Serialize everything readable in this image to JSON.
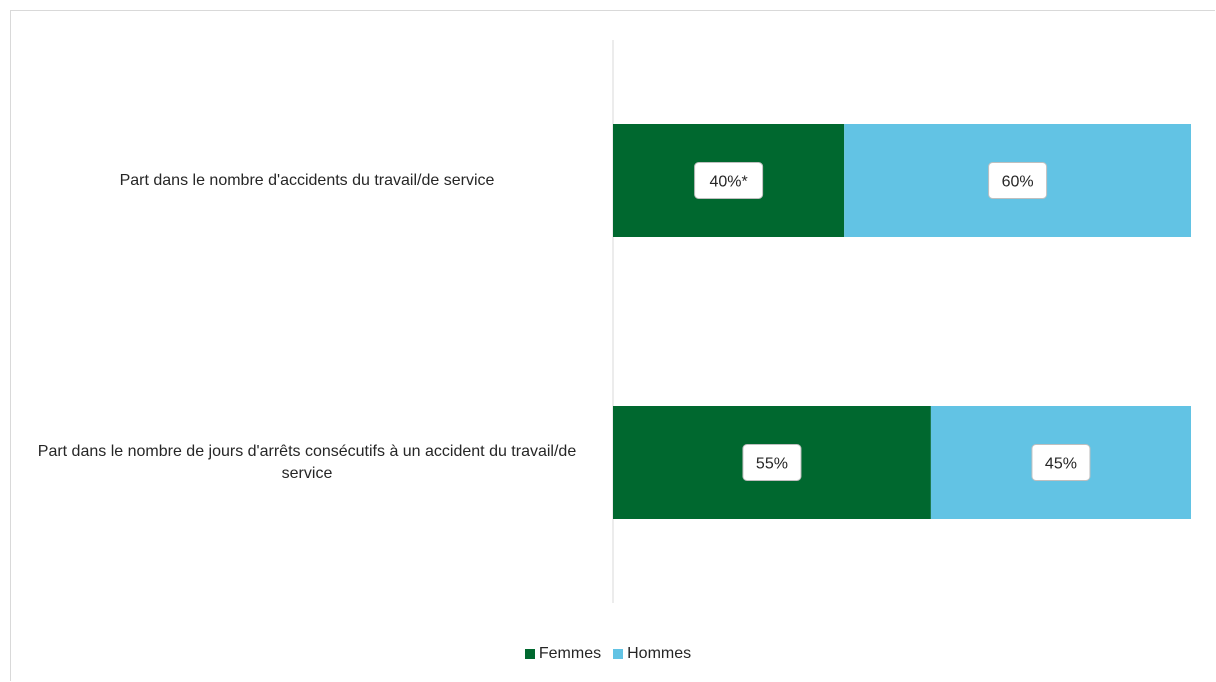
{
  "chart_data": {
    "type": "bar",
    "orientation": "horizontal",
    "stacked": "100%",
    "categories": [
      "Part dans le nombre d'accidents du travail/de service",
      "Part dans le nombre de jours d'arrêts consécutifs à un accident du travail/de service"
    ],
    "series": [
      {
        "name": "Femmes",
        "values": [
          40,
          55
        ],
        "labels": [
          "40%*",
          "55%"
        ],
        "color": "#00682f"
      },
      {
        "name": "Hommes",
        "values": [
          60,
          45
        ],
        "labels": [
          "60%",
          "45%"
        ],
        "color": "#62c3e4"
      }
    ],
    "xlim": [
      0,
      100
    ],
    "grid": false,
    "legend_position": "bottom"
  }
}
